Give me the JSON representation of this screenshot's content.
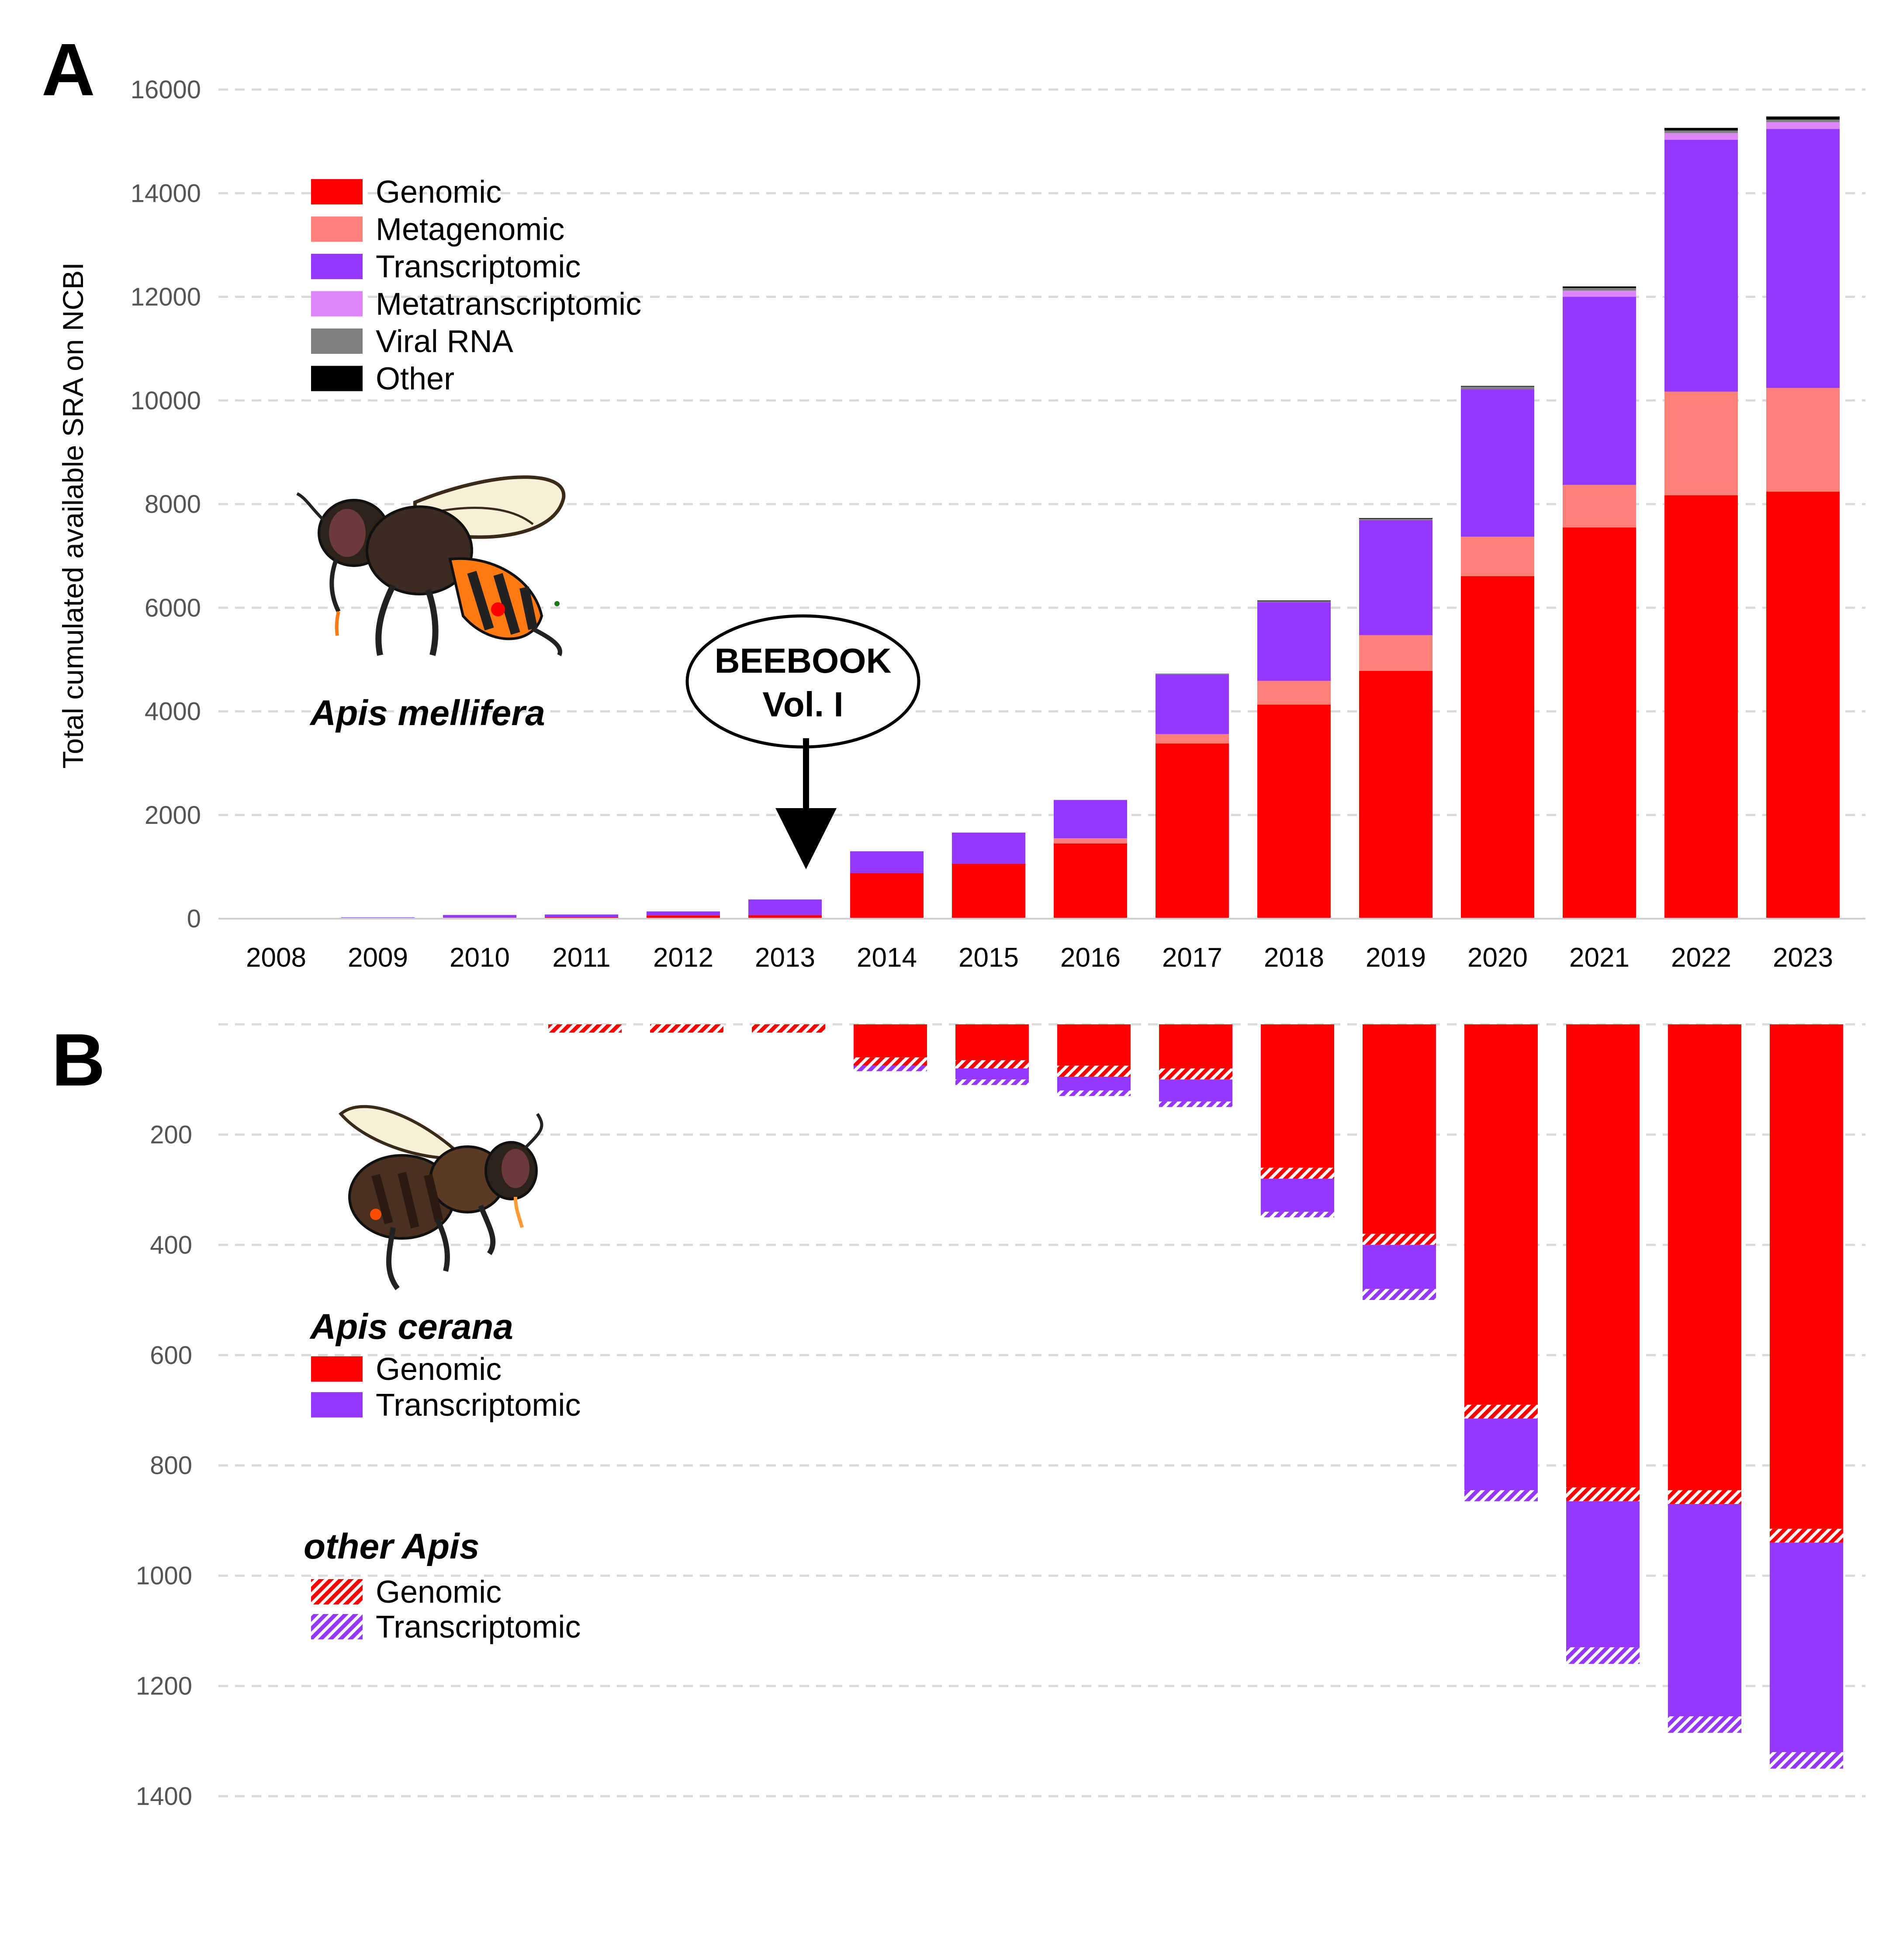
{
  "panels": {
    "a_letter": "A",
    "b_letter": "B"
  },
  "ylabel": "Total cumulated available SRA on NCBI",
  "callout": {
    "line1": "BEEBOOK",
    "line2": "Vol. I",
    "year": "2013"
  },
  "species": {
    "mellifera": "Apis mellifera",
    "cerana": "Apis cerana",
    "other": "other Apis"
  },
  "legend_a": [
    {
      "label": "Genomic",
      "color": "#ff0000"
    },
    {
      "label": "Metagenomic",
      "color": "#ff7f79"
    },
    {
      "label": "Transcriptomic",
      "color": "#9437ff"
    },
    {
      "label": "Metatranscriptomic",
      "color": "#dd86f8"
    },
    {
      "label": "Viral RNA",
      "color": "#808080"
    },
    {
      "label": "Other",
      "color": "#000000"
    }
  ],
  "legend_cerana": [
    {
      "label": "Genomic",
      "color": "#ff0000"
    },
    {
      "label": "Transcriptomic",
      "color": "#9437ff"
    }
  ],
  "legend_other": [
    {
      "label": "Genomic",
      "color": "#ff0000",
      "pattern": "hatched"
    },
    {
      "label": "Transcriptomic",
      "color": "#9437ff",
      "pattern": "hatched"
    }
  ],
  "chart_data": [
    {
      "type": "bar",
      "stacked": true,
      "panel": "A",
      "title": "",
      "ylabel": "Total cumulated available SRA on NCBI",
      "ylim": [
        0,
        16000
      ],
      "yticks": [
        0,
        2000,
        4000,
        6000,
        8000,
        10000,
        12000,
        14000,
        16000
      ],
      "grid": true,
      "legend_position": "top-left",
      "categories": [
        "2008",
        "2009",
        "2010",
        "2011",
        "2012",
        "2013",
        "2014",
        "2015",
        "2016",
        "2017",
        "2018",
        "2019",
        "2020",
        "2021",
        "2022",
        "2023"
      ],
      "series": [
        {
          "name": "Genomic",
          "color": "#ff0000",
          "values": [
            0,
            10,
            20,
            30,
            60,
            70,
            880,
            1060,
            1450,
            3380,
            4130,
            4780,
            6610,
            7550,
            8170,
            8240
          ]
        },
        {
          "name": "Metagenomic",
          "color": "#ff7f79",
          "values": [
            0,
            0,
            0,
            0,
            0,
            0,
            0,
            0,
            100,
            180,
            460,
            690,
            760,
            820,
            2000,
            2000
          ]
        },
        {
          "name": "Transcriptomic",
          "color": "#9437ff",
          "values": [
            5,
            15,
            50,
            50,
            80,
            300,
            420,
            600,
            740,
            1150,
            1520,
            2220,
            2850,
            3630,
            4860,
            5000
          ]
        },
        {
          "name": "Metatranscriptomic",
          "color": "#dd86f8",
          "values": [
            0,
            0,
            0,
            0,
            0,
            0,
            0,
            0,
            0,
            0,
            0,
            0,
            0,
            120,
            130,
            130
          ]
        },
        {
          "name": "Viral RNA",
          "color": "#808080",
          "values": [
            0,
            0,
            0,
            0,
            0,
            0,
            0,
            0,
            0,
            20,
            20,
            30,
            50,
            50,
            50,
            50
          ]
        },
        {
          "name": "Other",
          "color": "#000000",
          "values": [
            0,
            0,
            0,
            0,
            0,
            0,
            0,
            0,
            0,
            0,
            10,
            10,
            10,
            30,
            50,
            60
          ]
        }
      ]
    },
    {
      "type": "bar",
      "stacked": true,
      "panel": "B",
      "title": "",
      "inverted_y": true,
      "ylim": [
        0,
        1400
      ],
      "yticks": [
        200,
        400,
        600,
        800,
        1000,
        1200,
        1400
      ],
      "grid": true,
      "legend_position": "left",
      "categories": [
        "2008",
        "2009",
        "2010",
        "2011",
        "2012",
        "2013",
        "2014",
        "2015",
        "2016",
        "2017",
        "2018",
        "2019",
        "2020",
        "2021",
        "2022",
        "2023"
      ],
      "series": [
        {
          "name": "Genomic",
          "group": "Apis cerana",
          "color": "#ff0000",
          "pattern": "solid",
          "values": [
            0,
            0,
            0,
            0,
            0,
            0,
            60,
            65,
            75,
            80,
            260,
            380,
            690,
            840,
            845,
            915
          ]
        },
        {
          "name": "Genomic",
          "group": "other Apis",
          "color": "#ff0000",
          "pattern": "hatched",
          "values": [
            0,
            0,
            0,
            15,
            15,
            15,
            15,
            15,
            20,
            20,
            20,
            20,
            25,
            25,
            25,
            25
          ]
        },
        {
          "name": "Transcriptomic",
          "group": "Apis cerana",
          "color": "#9437ff",
          "pattern": "solid",
          "values": [
            0,
            0,
            0,
            0,
            0,
            0,
            0,
            20,
            25,
            40,
            60,
            80,
            130,
            265,
            385,
            380
          ]
        },
        {
          "name": "Transcriptomic",
          "group": "other Apis",
          "color": "#9437ff",
          "pattern": "hatched",
          "values": [
            0,
            0,
            0,
            0,
            0,
            0,
            10,
            10,
            10,
            10,
            10,
            20,
            20,
            30,
            30,
            30
          ]
        }
      ]
    }
  ]
}
